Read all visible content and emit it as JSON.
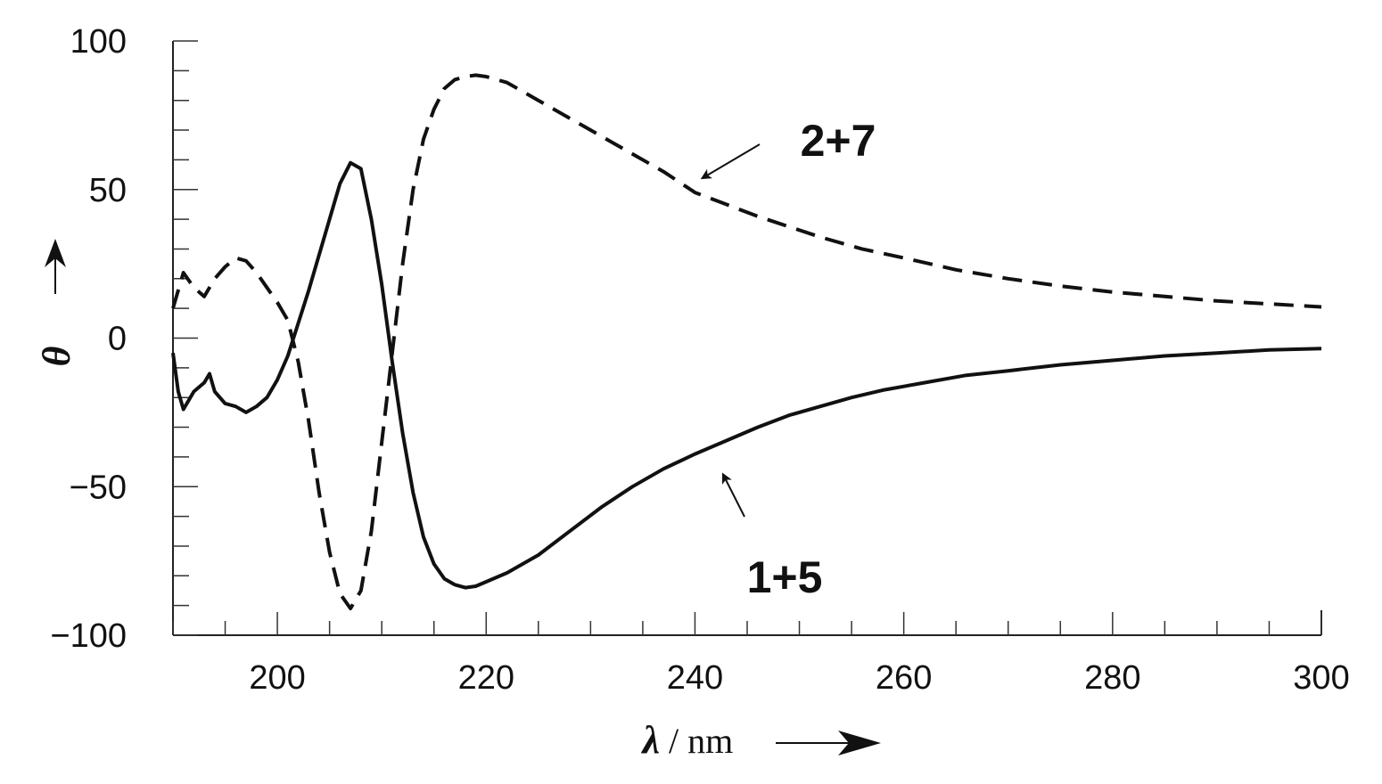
{
  "chart_data": {
    "type": "line",
    "title": "",
    "xlabel_symbol": "λ",
    "xlabel_unit": "/ nm",
    "ylabel": "θ",
    "xlim": [
      190,
      300
    ],
    "ylim": [
      -100,
      100
    ],
    "x_ticks": [
      200,
      220,
      240,
      260,
      280,
      300
    ],
    "y_ticks": [
      100,
      50,
      0,
      -50,
      -100
    ],
    "y_tick_labels": [
      "100",
      "50",
      "0",
      "−50",
      "−100"
    ],
    "x_minor_step": 5,
    "y_minor_step": 10,
    "grid": false,
    "series": [
      {
        "name": "1+5",
        "style": "solid",
        "color": "#111111",
        "points": [
          [
            190,
            -5
          ],
          [
            190.5,
            -18
          ],
          [
            191,
            -24
          ],
          [
            192,
            -18
          ],
          [
            193,
            -15
          ],
          [
            193.5,
            -12
          ],
          [
            194,
            -18
          ],
          [
            195,
            -22
          ],
          [
            196,
            -23
          ],
          [
            197,
            -25
          ],
          [
            198,
            -23
          ],
          [
            199,
            -20
          ],
          [
            200,
            -14
          ],
          [
            201,
            -6
          ],
          [
            202,
            5
          ],
          [
            203,
            16
          ],
          [
            204,
            28
          ],
          [
            205,
            40
          ],
          [
            206,
            52
          ],
          [
            207,
            59
          ],
          [
            208,
            57
          ],
          [
            209,
            40
          ],
          [
            210,
            18
          ],
          [
            211,
            -8
          ],
          [
            212,
            -32
          ],
          [
            213,
            -52
          ],
          [
            214,
            -67
          ],
          [
            215,
            -76
          ],
          [
            216,
            -81
          ],
          [
            217,
            -83
          ],
          [
            218,
            -84
          ],
          [
            219,
            -83.5
          ],
          [
            220,
            -82
          ],
          [
            222,
            -79
          ],
          [
            225,
            -73
          ],
          [
            228,
            -65
          ],
          [
            231,
            -57
          ],
          [
            234,
            -50
          ],
          [
            237,
            -44
          ],
          [
            240,
            -39
          ],
          [
            243,
            -34.5
          ],
          [
            246,
            -30
          ],
          [
            249,
            -26
          ],
          [
            252,
            -23
          ],
          [
            255,
            -20
          ],
          [
            258,
            -17.5
          ],
          [
            262,
            -15
          ],
          [
            266,
            -12.5
          ],
          [
            270,
            -11
          ],
          [
            275,
            -9
          ],
          [
            280,
            -7.5
          ],
          [
            285,
            -6
          ],
          [
            290,
            -5
          ],
          [
            295,
            -4
          ],
          [
            300,
            -3.5
          ]
        ]
      },
      {
        "name": "2+7",
        "style": "dashed",
        "color": "#111111",
        "points": [
          [
            190,
            10
          ],
          [
            191,
            22
          ],
          [
            192,
            17
          ],
          [
            193,
            14
          ],
          [
            194,
            20
          ],
          [
            195,
            24
          ],
          [
            196,
            27
          ],
          [
            197,
            26
          ],
          [
            198,
            22
          ],
          [
            199,
            17
          ],
          [
            200,
            12
          ],
          [
            201,
            6
          ],
          [
            202,
            -8
          ],
          [
            203,
            -28
          ],
          [
            204,
            -52
          ],
          [
            205,
            -72
          ],
          [
            206,
            -86
          ],
          [
            207,
            -91
          ],
          [
            208,
            -85
          ],
          [
            209,
            -65
          ],
          [
            210,
            -35
          ],
          [
            211,
            -5
          ],
          [
            212,
            25
          ],
          [
            213,
            50
          ],
          [
            214,
            67
          ],
          [
            215,
            77
          ],
          [
            216,
            84
          ],
          [
            217,
            87
          ],
          [
            218,
            88
          ],
          [
            219,
            88.5
          ],
          [
            220,
            88
          ],
          [
            222,
            86
          ],
          [
            225,
            80
          ],
          [
            228,
            74
          ],
          [
            231,
            68
          ],
          [
            234,
            62
          ],
          [
            237,
            56
          ],
          [
            240,
            49
          ],
          [
            243,
            45
          ],
          [
            246,
            41
          ],
          [
            249,
            37.5
          ],
          [
            252,
            34
          ],
          [
            256,
            30
          ],
          [
            260,
            27
          ],
          [
            265,
            23
          ],
          [
            270,
            20
          ],
          [
            275,
            17.5
          ],
          [
            280,
            15.5
          ],
          [
            285,
            14
          ],
          [
            290,
            12.5
          ],
          [
            295,
            11.5
          ],
          [
            300,
            10.5
          ]
        ]
      }
    ],
    "annotations": [
      {
        "text": "2+7",
        "series": "2+7",
        "arrow_to": [
          240,
          52
        ]
      },
      {
        "text": "1+5",
        "series": "1+5",
        "arrow_to": [
          242,
          -44
        ]
      }
    ]
  }
}
